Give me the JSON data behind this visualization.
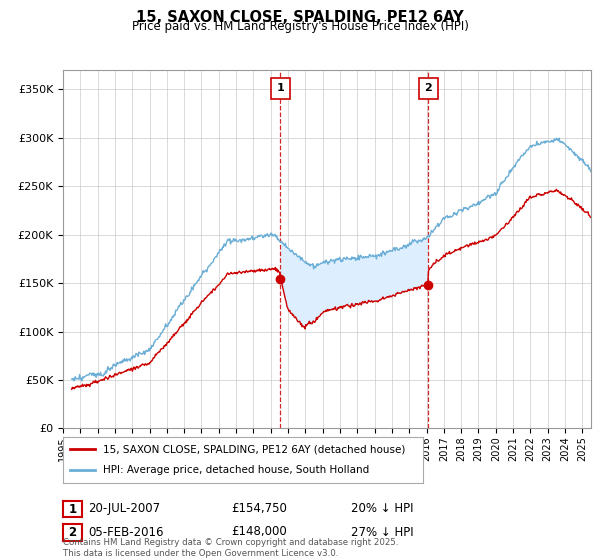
{
  "title": "15, SAXON CLOSE, SPALDING, PE12 6AY",
  "subtitle": "Price paid vs. HM Land Registry's House Price Index (HPI)",
  "ylabel_ticks": [
    "£0",
    "£50K",
    "£100K",
    "£150K",
    "£200K",
    "£250K",
    "£300K",
    "£350K"
  ],
  "ylim": [
    0,
    370000
  ],
  "xlim_start": 1995.5,
  "xlim_end": 2025.5,
  "marker1_x": 2007.55,
  "marker1_label": "1",
  "marker2_x": 2016.09,
  "marker2_label": "2",
  "marker1_y": 154750,
  "marker2_y": 148000,
  "legend_line1": "15, SAXON CLOSE, SPALDING, PE12 6AY (detached house)",
  "legend_line2": "HPI: Average price, detached house, South Holland",
  "annotation1_num": "1",
  "annotation1_date": "20-JUL-2007",
  "annotation1_price": "£154,750",
  "annotation1_hpi": "20% ↓ HPI",
  "annotation2_num": "2",
  "annotation2_date": "05-FEB-2016",
  "annotation2_price": "£148,000",
  "annotation2_hpi": "27% ↓ HPI",
  "copyright_text": "Contains HM Land Registry data © Crown copyright and database right 2025.\nThis data is licensed under the Open Government Licence v3.0.",
  "hpi_color": "#6baed6",
  "price_color": "#cc0000",
  "marker_color": "#cc0000",
  "shading_color": "#ddeeff",
  "background_color": "#ffffff",
  "grid_color": "#cccccc"
}
